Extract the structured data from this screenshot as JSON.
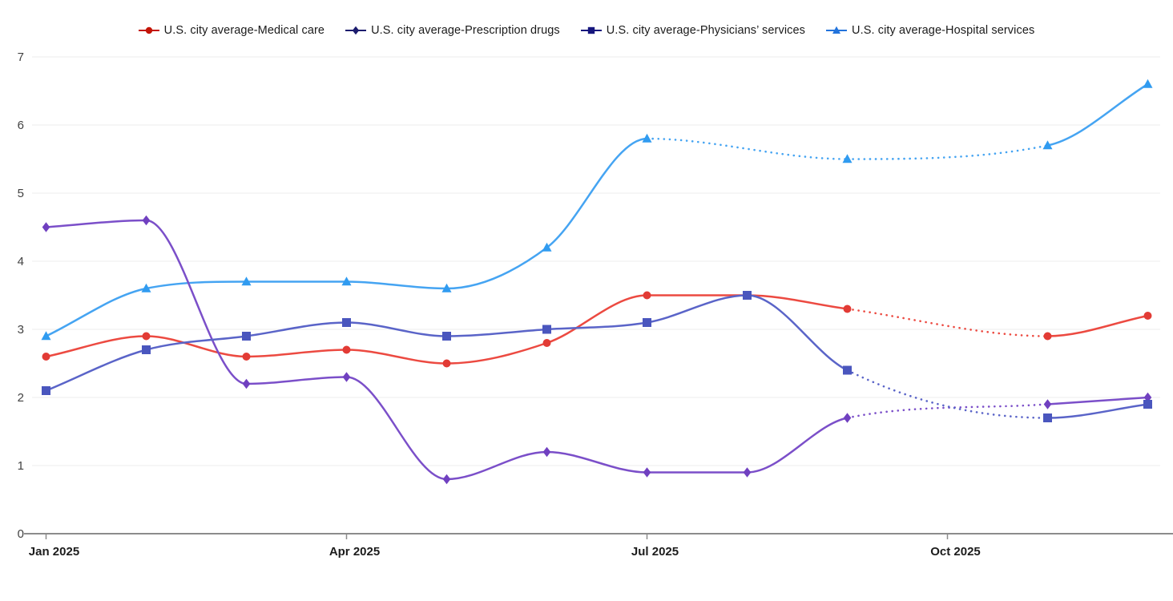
{
  "page": {
    "background": "#ffffff"
  },
  "chart_data": {
    "type": "line",
    "title": "",
    "xlabel": "",
    "ylabel": "",
    "legend_position": "top-center",
    "grid": "horizontal",
    "y_range": [
      0,
      7
    ],
    "y_ticks": [
      "0",
      "1",
      "2",
      "3",
      "4",
      "5",
      "6",
      "7"
    ],
    "x_tick_labels": [
      "Jan 2025",
      "Apr 2025",
      "Jul 2025",
      "Oct 2025"
    ],
    "months": [
      "Jan 2025",
      "Feb 2025",
      "Mar 2025",
      "Apr 2025",
      "May 2025",
      "Jun 2025",
      "Jul 2025",
      "Aug 2025",
      "Sep 2025",
      "Oct 2025",
      "Nov 2025",
      "Dec 2025"
    ],
    "style_note": "Segments spanning months with no data point are rendered as dotted interpolation (Oct 2025 missing for all series; Aug 2025 also missing for Hospital services).",
    "draw_order": [
      3,
      0,
      1,
      2
    ],
    "series": [
      {
        "name": "U.S. city average-Medical care",
        "key": "medical-care",
        "marker": "circle",
        "line_color": "#ec4a41",
        "marker_color": "#e23b35",
        "legend_color": "#c41508",
        "data": [
          {
            "month": "Jan 2025",
            "value": 2.6
          },
          {
            "month": "Feb 2025",
            "value": 2.9
          },
          {
            "month": "Mar 2025",
            "value": 2.6
          },
          {
            "month": "Apr 2025",
            "value": 2.7
          },
          {
            "month": "May 2025",
            "value": 2.5
          },
          {
            "month": "Jun 2025",
            "value": 2.8
          },
          {
            "month": "Jul 2025",
            "value": 3.5
          },
          {
            "month": "Aug 2025",
            "value": 3.5
          },
          {
            "month": "Sep 2025",
            "value": 3.3
          },
          {
            "month": "Nov 2025",
            "value": 2.9
          },
          {
            "month": "Dec 2025",
            "value": 3.2
          }
        ]
      },
      {
        "name": "U.S. city average-Prescription drugs",
        "key": "prescription-drugs",
        "marker": "diamond",
        "line_color": "#7b4fc9",
        "marker_color": "#7040c0",
        "legend_color": "#1c1c6e",
        "data": [
          {
            "month": "Jan 2025",
            "value": 4.5
          },
          {
            "month": "Feb 2025",
            "value": 4.6
          },
          {
            "month": "Mar 2025",
            "value": 2.2
          },
          {
            "month": "Apr 2025",
            "value": 2.3
          },
          {
            "month": "May 2025",
            "value": 0.8
          },
          {
            "month": "Jun 2025",
            "value": 1.2
          },
          {
            "month": "Jul 2025",
            "value": 0.9
          },
          {
            "month": "Aug 2025",
            "value": 0.9
          },
          {
            "month": "Sep 2025",
            "value": 1.7
          },
          {
            "month": "Nov 2025",
            "value": 1.9
          },
          {
            "month": "Dec 2025",
            "value": 2.0
          }
        ]
      },
      {
        "name": "U.S. city average-Physicians’ services",
        "key": "physicians-services",
        "marker": "square",
        "line_color": "#5a64c8",
        "marker_color": "#4a56be",
        "legend_color": "#15157d",
        "data": [
          {
            "month": "Jan 2025",
            "value": 2.1
          },
          {
            "month": "Feb 2025",
            "value": 2.7
          },
          {
            "month": "Mar 2025",
            "value": 2.9
          },
          {
            "month": "Apr 2025",
            "value": 3.1
          },
          {
            "month": "May 2025",
            "value": 2.9
          },
          {
            "month": "Jun 2025",
            "value": 3.0
          },
          {
            "month": "Jul 2025",
            "value": 3.1
          },
          {
            "month": "Aug 2025",
            "value": 3.5
          },
          {
            "month": "Sep 2025",
            "value": 2.4
          },
          {
            "month": "Nov 2025",
            "value": 1.7
          },
          {
            "month": "Dec 2025",
            "value": 1.9
          }
        ]
      },
      {
        "name": "U.S. city average-Hospital services",
        "key": "hospital-services",
        "marker": "triangle",
        "line_color": "#45a4f2",
        "marker_color": "#309bf0",
        "legend_color": "#2273dc",
        "data": [
          {
            "month": "Jan 2025",
            "value": 2.9
          },
          {
            "month": "Feb 2025",
            "value": 3.6
          },
          {
            "month": "Mar 2025",
            "value": 3.7
          },
          {
            "month": "Apr 2025",
            "value": 3.7
          },
          {
            "month": "May 2025",
            "value": 3.6
          },
          {
            "month": "Jun 2025",
            "value": 4.2
          },
          {
            "month": "Jul 2025",
            "value": 5.8
          },
          {
            "month": "Sep 2025",
            "value": 5.5
          },
          {
            "month": "Nov 2025",
            "value": 5.7
          },
          {
            "month": "Dec 2025",
            "value": 6.6
          }
        ]
      }
    ],
    "axis_colors": {
      "grid": "#ececec",
      "axis_line": "#8c8c8c",
      "y_label_color": "#424242",
      "x_label_color": "#1c1c1c"
    }
  }
}
